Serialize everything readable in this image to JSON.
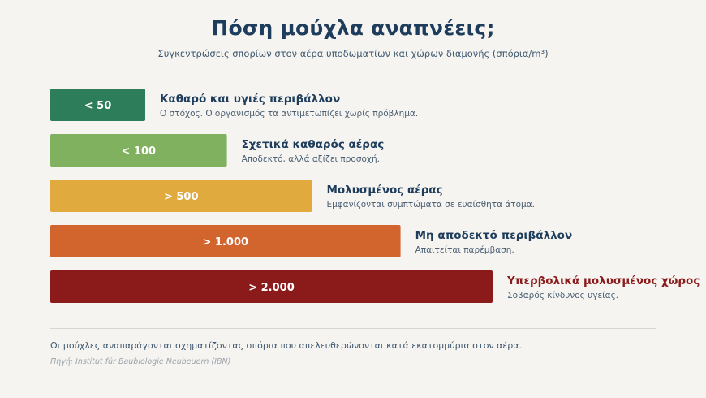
{
  "title": "Πόση μούχλα αναπνέεις;",
  "subtitle": "Συγκεντρώσεις σπορίων στον αέρα υποδωματίων και χώρων διαμονής (σπόρια/m³)",
  "footnote": "Οι μούχλες αναπαράγονται σχηματίζοντας σπόρια που απελευθερώνονται κατά εκατομμύρια στον αέρα.",
  "source": "Πηγή: Institut für Baubiologie Neubeuern (IBN)",
  "chart_data": {
    "type": "bar",
    "orientation": "horizontal",
    "unit": "σπόρια/m³",
    "categories": [
      "< 50",
      "< 100",
      "> 500",
      "> 1.000",
      "> 2.000"
    ],
    "values": [
      50,
      100,
      500,
      1000,
      2000
    ],
    "bar_colors": [
      "#2e7d5a",
      "#7fb15e",
      "#e0aa3e",
      "#d2652e",
      "#8b1a1a"
    ],
    "headings": [
      "Καθαρό και υγιές περιβάλλον",
      "Σχετικά καθαρός αέρας",
      "Μολυσμένος αέρας",
      "Μη αποδεκτό περιβάλλον",
      "Υπερβολικά μολυσμένος χώρος"
    ],
    "descriptions": [
      "Ο στόχος. Ο οργανισμός τα αντιμετωπίζει χωρίς πρόβλημα.",
      "Αποδεκτό, αλλά αξίζει προσοχή.",
      "Εμφανίζονται συμπτώματα σε ευαίσθητα άτομα.",
      "Απαιτείται παρέμβαση.",
      "Σοβαρός κίνδυνος υγείας."
    ],
    "heading_colors": [
      "#1e3d5c",
      "#1e3d5c",
      "#1e3d5c",
      "#1e3d5c",
      "#8b1a1a"
    ]
  }
}
